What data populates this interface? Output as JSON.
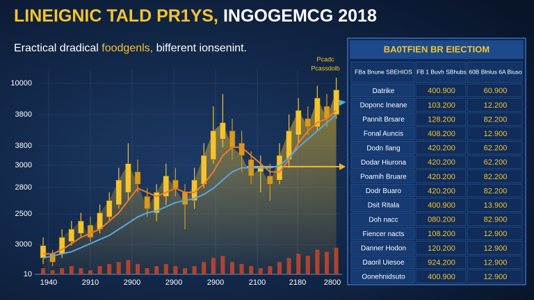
{
  "chart_data": {
    "type": "candlestick",
    "title_parts": [
      "LINEIGNIC TALD PR1YS,",
      "INGOGEMCG 2018"
    ],
    "subtitle_parts": [
      "Eractical dradical",
      "foodgenls,",
      "bifferent ionsenint."
    ],
    "annotations": [
      "Pcadc",
      "Pcassdolb"
    ],
    "y_labels": [
      "10000",
      "3800",
      "3800",
      "3000",
      "2800",
      "2500",
      "3000",
      "10"
    ],
    "x_labels": [
      "1940",
      "2910",
      "2900",
      "2900",
      "2900",
      "2100",
      "2180",
      "2800"
    ],
    "ylim": [
      0,
      100
    ],
    "up_color": "#f4c430",
    "down_color": "#d99a1e",
    "open": [
      8,
      10,
      10,
      16,
      20,
      24,
      22,
      28,
      34,
      40,
      50,
      38,
      30,
      38,
      46,
      40,
      36,
      44,
      56,
      66,
      70,
      64,
      56,
      50,
      48,
      46,
      56,
      68,
      76,
      72,
      82,
      78
    ],
    "close": [
      14,
      6,
      18,
      22,
      26,
      18,
      30,
      36,
      46,
      54,
      44,
      32,
      40,
      48,
      42,
      34,
      46,
      58,
      70,
      74,
      62,
      58,
      48,
      52,
      44,
      58,
      70,
      80,
      72,
      86,
      76,
      90
    ],
    "high": [
      18,
      12,
      22,
      26,
      30,
      28,
      34,
      40,
      52,
      64,
      56,
      42,
      44,
      54,
      52,
      44,
      52,
      64,
      82,
      88,
      76,
      70,
      60,
      58,
      54,
      64,
      78,
      86,
      82,
      92,
      88,
      96
    ],
    "low": [
      5,
      4,
      8,
      14,
      18,
      16,
      20,
      26,
      32,
      36,
      40,
      28,
      26,
      34,
      38,
      22,
      32,
      42,
      54,
      62,
      56,
      50,
      44,
      40,
      36,
      44,
      52,
      64,
      68,
      70,
      72,
      76
    ],
    "series": [
      {
        "name": null,
        "color": "#f07a2a",
        "values": [
          10,
          10,
          12,
          15,
          18,
          20,
          22,
          26,
          30,
          36,
          42,
          40,
          38,
          40,
          42,
          40,
          40,
          44,
          50,
          58,
          62,
          62,
          58,
          54,
          50,
          50,
          56,
          64,
          70,
          74,
          76,
          80
        ]
      },
      {
        "name": null,
        "color": "#5aa8e0",
        "values": [
          8,
          9,
          10,
          11,
          13,
          15,
          17,
          19,
          22,
          25,
          28,
          30,
          31,
          33,
          35,
          36,
          37,
          39,
          42,
          46,
          50,
          52,
          52,
          52,
          52,
          53,
          57,
          62,
          66,
          70,
          74,
          78
        ]
      }
    ],
    "volume": {
      "color": "#c9462c",
      "values": [
        3,
        2,
        3,
        4,
        3,
        2,
        4,
        5,
        6,
        7,
        5,
        3,
        4,
        5,
        4,
        3,
        4,
        6,
        8,
        9,
        6,
        5,
        4,
        3,
        4,
        6,
        8,
        10,
        9,
        12,
        11,
        13
      ]
    },
    "table": {
      "title": "BA0TFIEN BR EIECTIOM",
      "header": [
        "FBa Bnune SBEHIOS",
        "FB 1 Buvh SBhubs",
        "60B Blnlus 6A Biuso"
      ],
      "rows": [
        [
          "Datrike",
          "400.900",
          "60.900"
        ],
        [
          "Doponc Ineane",
          "103.200",
          "12.200"
        ],
        [
          "Pannit Brsare",
          "128.200",
          "82.200"
        ],
        [
          "Fonal Auncis",
          "408.200",
          "12.900"
        ],
        [
          "Dodn Ilang",
          "420.200",
          "62.200"
        ],
        [
          "Dodar Hiurona",
          "420.200",
          "62.200"
        ],
        [
          "Poamih Bruare",
          "420.200",
          "82.200"
        ],
        [
          "Dodr Buaro",
          "420.200",
          "82.200"
        ],
        [
          "Dsit Ritala",
          "400.900",
          "13.900"
        ],
        [
          "Doh nacc",
          "080.200",
          "82.900"
        ],
        [
          "Fiencer nacts",
          "108.200",
          "12.900"
        ],
        [
          "Danner Hodon",
          "120.200",
          "12.900"
        ],
        [
          "Daoril Uiesoe",
          "924.200",
          "12.900"
        ],
        [
          "Oonehnidsuto",
          "400.900",
          "12.900"
        ]
      ]
    }
  }
}
